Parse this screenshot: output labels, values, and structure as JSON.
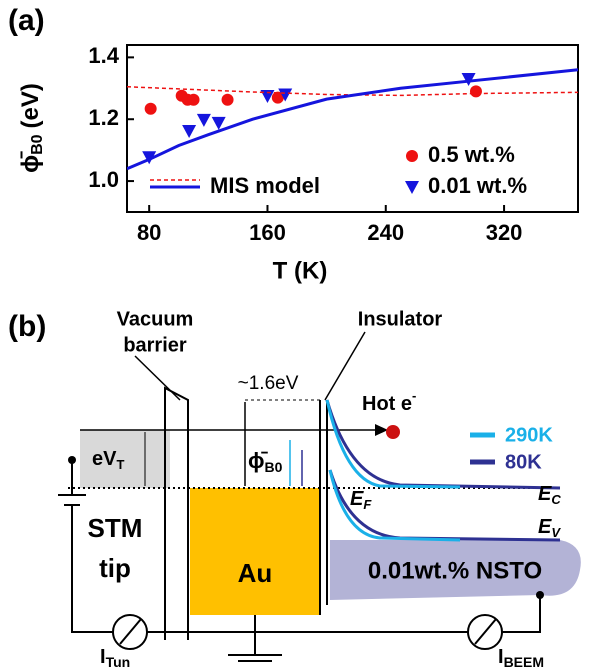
{
  "chart_data": {
    "type": "scatter",
    "panel_label": "(a)",
    "x_label": "T (K)",
    "y_label": {
      "symbol": "ϕ̄",
      "sub": "B0",
      "unit": "(eV)"
    },
    "xlim": [
      65,
      370
    ],
    "ylim": [
      0.9,
      1.44
    ],
    "xticks": [
      80,
      160,
      240,
      320
    ],
    "yticks": [
      {
        "value": 1,
        "label": "1.0"
      },
      1.2,
      1.4
    ],
    "series": [
      {
        "name": "0.5 wt.%",
        "color": "#ee1111",
        "mode": "markers",
        "marker": "circle",
        "x": [
          81,
          102,
          106,
          110,
          133,
          167,
          301
        ],
        "values": [
          1.234,
          1.276,
          1.263,
          1.263,
          1.263,
          1.27,
          1.29
        ]
      },
      {
        "name": "0.01 wt.%",
        "color": "#1515dd",
        "mode": "markers",
        "marker": "triangle",
        "x": [
          80,
          107,
          117,
          127,
          160,
          172,
          296
        ],
        "values": [
          1.077,
          1.162,
          1.198,
          1.188,
          1.275,
          1.28,
          1.33
        ]
      },
      {
        "color": "#ee1111",
        "mode": "line",
        "dash": true,
        "x": [
          65,
          100,
          150,
          200,
          250,
          300,
          370
        ],
        "values": [
          1.305,
          1.298,
          1.288,
          1.28,
          1.277,
          1.283,
          1.287
        ]
      },
      {
        "name": "MIS model",
        "color": "#1515dd",
        "mode": "line",
        "dash": false,
        "x": [
          65,
          80,
          100,
          120,
          150,
          200,
          250,
          300,
          370
        ],
        "values": [
          1.04,
          1.07,
          1.115,
          1.15,
          1.2,
          1.265,
          1.3,
          1.325,
          1.36
        ]
      }
    ]
  },
  "diagram": {
    "panel_label": "(b)",
    "vacuum_barrier": [
      "Vacuum",
      "barrier"
    ],
    "insulator": "Insulator",
    "height": "~1.6eV",
    "hot_electron": {
      "text": "Hot e",
      "sup": "-"
    },
    "legend": [
      "290K",
      "80K"
    ],
    "ev_t": {
      "text": "eV",
      "sub": "T"
    },
    "phi": {
      "symbol": "ϕ̄",
      "sub": "B0"
    },
    "ef": {
      "text": "E",
      "sub": "F"
    },
    "ec": {
      "text": "E",
      "sub": "C"
    },
    "ev": {
      "text": "E",
      "sub": "V"
    },
    "tip": [
      "STM",
      "tip"
    ],
    "metal": "Au",
    "semiconductor": "0.01wt.% NSTO",
    "i_tun": {
      "text": "I",
      "sub": "Tun"
    },
    "i_beem": {
      "text": "I",
      "sub": "BEEM"
    }
  }
}
